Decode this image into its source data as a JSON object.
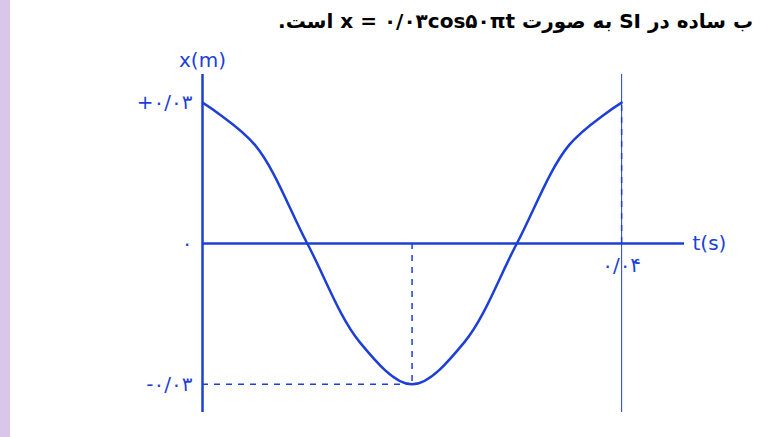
{
  "chart_data": {
    "type": "line",
    "title": "ب ساده در SI به صورت x = ۰/۰۳cos۵۰πt است.",
    "x_label": "t(s)",
    "y_label": "x(m)",
    "x": [
      0,
      0.005,
      0.01,
      0.015,
      0.02,
      0.025,
      0.03,
      0.035,
      0.04
    ],
    "values": [
      0.03,
      0.021,
      0,
      -0.021,
      -0.03,
      -0.021,
      0,
      0.021,
      0.03
    ],
    "color": "#1d3fd6",
    "xlim": [
      0,
      0.046
    ],
    "ylim": [
      -0.036,
      0.036
    ],
    "xticks": [
      {
        "value": 0.04,
        "label": "۰/۰۴"
      }
    ],
    "yticks": [
      {
        "value": 0.03,
        "label": "+۰/۰۳"
      },
      {
        "value": 0,
        "label": "۰"
      },
      {
        "value": -0.03,
        "label": "-۰/۰۳"
      }
    ],
    "grid": false
  }
}
